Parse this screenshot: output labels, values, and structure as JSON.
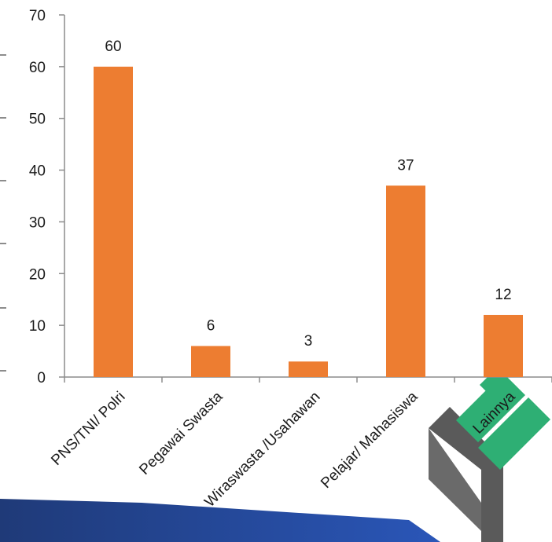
{
  "colors": {
    "bar": "#ED7D31",
    "axis": "#8c8c8c",
    "text": "#1a1a1a",
    "banner_dark": "#1f3a78",
    "banner_light": "#2a56b8",
    "logo_green": "#2eaf74",
    "logo_gray": "#5a5a5a"
  },
  "logo": {
    "icon": "leaf-logo-icon"
  },
  "chart_data": {
    "type": "bar",
    "categories": [
      "PNS/TNI/ Polri",
      "Pegawai Swasta",
      "Wiraswasta /Usahawan",
      "Pelajar/ Mahasiswa",
      "Lainnya"
    ],
    "values": [
      60,
      6,
      3,
      37,
      12
    ],
    "data_labels": [
      "60",
      "6",
      "3",
      "37",
      "12"
    ],
    "y_ticks": [
      0,
      10,
      20,
      30,
      40,
      50,
      60,
      70
    ],
    "tick_labels": [
      "0",
      "10",
      "20",
      "30",
      "40",
      "50",
      "60",
      "70"
    ],
    "ylim": [
      0,
      70
    ],
    "title": "",
    "xlabel": "",
    "ylabel": "",
    "grid": false,
    "legend": "none"
  }
}
